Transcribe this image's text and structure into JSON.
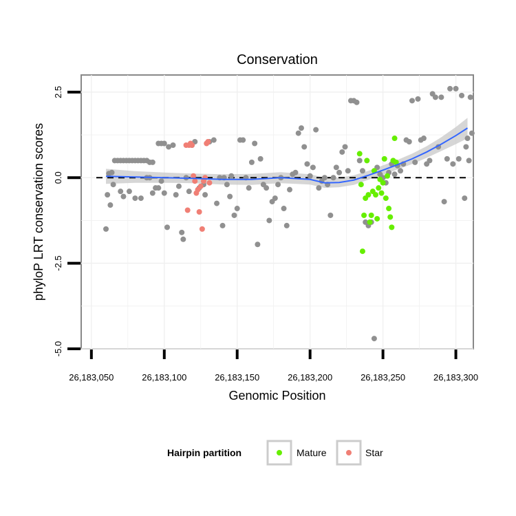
{
  "chart_data": {
    "type": "scatter",
    "title": "Conservation",
    "xlabel": "Genomic Position",
    "ylabel": "phyloP LRT conservation scores",
    "xlim": [
      26183043,
      26183312
    ],
    "ylim": [
      -5.0,
      3.0
    ],
    "x_ticks": [
      26183050,
      26183100,
      26183150,
      26183200,
      26183250,
      26183300
    ],
    "x_tick_labels": [
      "26,183,050",
      "26,183,100",
      "26,183,150",
      "26,183,200",
      "26,183,250",
      "26,183,300"
    ],
    "y_ticks": [
      -5.0,
      -2.5,
      0.0,
      2.5
    ],
    "y_tick_labels": [
      "-5.0",
      "-2.5",
      "0.0",
      "2.5"
    ],
    "reference_line": {
      "y": 0,
      "style": "dashed",
      "color": "#000000"
    },
    "legend": {
      "title": "Hairpin partition",
      "placement": "bottom",
      "entries": [
        {
          "label": "Mature",
          "color": "#66ee00"
        },
        {
          "label": "Star",
          "color": "#f07f75"
        }
      ]
    },
    "colors": {
      "other": "#909090",
      "mature": "#66ee00",
      "star": "#f07f75",
      "smooth": "#3366ff",
      "band": "#c8c8c8"
    },
    "smooth": {
      "x": [
        26183060,
        26183080,
        26183100,
        26183120,
        26183140,
        26183160,
        26183180,
        26183200,
        26183210,
        26183220,
        26183230,
        26183240,
        26183250,
        26183260,
        26183270,
        26183280,
        26183290,
        26183300,
        26183308
      ],
      "y": [
        0.04,
        0.02,
        0.0,
        -0.02,
        -0.05,
        -0.05,
        0.0,
        -0.05,
        -0.15,
        -0.14,
        -0.07,
        0.07,
        0.22,
        0.38,
        0.55,
        0.75,
        0.98,
        1.23,
        1.45
      ],
      "ci_half_width": [
        0.22,
        0.17,
        0.15,
        0.14,
        0.15,
        0.16,
        0.16,
        0.15,
        0.15,
        0.14,
        0.14,
        0.13,
        0.14,
        0.14,
        0.15,
        0.17,
        0.2,
        0.25,
        0.3
      ]
    },
    "series": [
      {
        "name": "Other",
        "points": [
          [
            26183060,
            -1.5
          ],
          [
            26183061,
            -0.5
          ],
          [
            26183062,
            0.12
          ],
          [
            26183063,
            -0.8
          ],
          [
            26183064,
            0.15
          ],
          [
            26183065,
            -0.2
          ],
          [
            26183066,
            0.5
          ],
          [
            26183068,
            0.5
          ],
          [
            26183070,
            0.5
          ],
          [
            26183072,
            0.5
          ],
          [
            26183074,
            0.5
          ],
          [
            26183076,
            0.5
          ],
          [
            26183078,
            0.5
          ],
          [
            26183080,
            0.5
          ],
          [
            26183082,
            0.5
          ],
          [
            26183084,
            0.5
          ],
          [
            26183086,
            0.5
          ],
          [
            26183088,
            0.5
          ],
          [
            26183090,
            0.45
          ],
          [
            26183092,
            0.45
          ],
          [
            26183070,
            -0.4
          ],
          [
            26183072,
            -0.55
          ],
          [
            26183076,
            -0.4
          ],
          [
            26183080,
            -0.6
          ],
          [
            26183084,
            -0.6
          ],
          [
            26183088,
            0.0
          ],
          [
            26183090,
            0.0
          ],
          [
            26183092,
            -0.45
          ],
          [
            26183094,
            -0.3
          ],
          [
            26183096,
            -0.3
          ],
          [
            26183098,
            -0.1
          ],
          [
            26183100,
            -0.45
          ],
          [
            26183102,
            -1.45
          ],
          [
            26183096,
            1.0
          ],
          [
            26183098,
            1.0
          ],
          [
            26183100,
            1.0
          ],
          [
            26183103,
            0.9
          ],
          [
            26183106,
            0.95
          ],
          [
            26183108,
            -0.5
          ],
          [
            26183110,
            -0.25
          ],
          [
            26183112,
            -1.6
          ],
          [
            26183113,
            -1.8
          ],
          [
            26183115,
            0.0
          ],
          [
            26183117,
            -0.4
          ],
          [
            26183119,
            0.95
          ],
          [
            26183121,
            1.05
          ],
          [
            26183124,
            -0.3
          ],
          [
            26183127,
            -0.2
          ],
          [
            26183128,
            -0.5
          ],
          [
            26183131,
            1.05
          ],
          [
            26183134,
            1.1
          ],
          [
            26183136,
            -0.75
          ],
          [
            26183138,
            0.0
          ],
          [
            26183140,
            -1.4
          ],
          [
            26183141,
            0.0
          ],
          [
            26183143,
            -0.2
          ],
          [
            26183145,
            -0.55
          ],
          [
            26183146,
            0.05
          ],
          [
            26183148,
            -1.1
          ],
          [
            26183150,
            -0.9
          ],
          [
            26183152,
            1.1
          ],
          [
            26183154,
            1.1
          ],
          [
            26183156,
            0.0
          ],
          [
            26183158,
            -0.3
          ],
          [
            26183160,
            0.45
          ],
          [
            26183162,
            1.0
          ],
          [
            26183164,
            -1.95
          ],
          [
            26183166,
            0.55
          ],
          [
            26183168,
            -0.2
          ],
          [
            26183170,
            -0.3
          ],
          [
            26183172,
            -1.25
          ],
          [
            26183174,
            -0.7
          ],
          [
            26183176,
            -0.6
          ],
          [
            26183178,
            -0.2
          ],
          [
            26183180,
            0.0
          ],
          [
            26183182,
            -0.9
          ],
          [
            26183184,
            -1.4
          ],
          [
            26183186,
            -0.35
          ],
          [
            26183188,
            0.1
          ],
          [
            26183190,
            0.15
          ],
          [
            26183192,
            1.3
          ],
          [
            26183194,
            1.45
          ],
          [
            26183196,
            0.9
          ],
          [
            26183198,
            0.4
          ],
          [
            26183200,
            0.05
          ],
          [
            26183202,
            0.3
          ],
          [
            26183204,
            1.4
          ],
          [
            26183206,
            -0.3
          ],
          [
            26183208,
            -0.1
          ],
          [
            26183210,
            0.0
          ],
          [
            26183212,
            -0.2
          ],
          [
            26183214,
            -1.1
          ],
          [
            26183216,
            0.0
          ],
          [
            26183218,
            0.3
          ],
          [
            26183220,
            0.15
          ],
          [
            26183222,
            0.75
          ],
          [
            26183224,
            0.9
          ],
          [
            26183226,
            0.2
          ],
          [
            26183228,
            2.25
          ],
          [
            26183230,
            2.25
          ],
          [
            26183232,
            2.2
          ],
          [
            26183234,
            0.5
          ],
          [
            26183236,
            0.2
          ],
          [
            26183238,
            -1.3
          ],
          [
            26183240,
            -1.4
          ],
          [
            26183242,
            -1.3
          ],
          [
            26183244,
            -4.7
          ],
          [
            26183246,
            0.3
          ],
          [
            26183248,
            0.1
          ],
          [
            26183250,
            0.0
          ],
          [
            26183252,
            -0.15
          ],
          [
            26183254,
            0.15
          ],
          [
            26183256,
            0.4
          ],
          [
            26183258,
            0.1
          ],
          [
            26183260,
            0.35
          ],
          [
            26183262,
            0.2
          ],
          [
            26183264,
            0.4
          ],
          [
            26183266,
            1.1
          ],
          [
            26183268,
            1.05
          ],
          [
            26183270,
            2.25
          ],
          [
            26183272,
            0.45
          ],
          [
            26183274,
            2.3
          ],
          [
            26183276,
            1.1
          ],
          [
            26183278,
            1.15
          ],
          [
            26183280,
            0.4
          ],
          [
            26183282,
            0.5
          ],
          [
            26183284,
            2.45
          ],
          [
            26183286,
            2.35
          ],
          [
            26183288,
            0.9
          ],
          [
            26183290,
            2.35
          ],
          [
            26183292,
            -0.7
          ],
          [
            26183294,
            0.55
          ],
          [
            26183296,
            2.6
          ],
          [
            26183298,
            0.4
          ],
          [
            26183300,
            2.6
          ],
          [
            26183302,
            0.55
          ],
          [
            26183304,
            2.4
          ],
          [
            26183306,
            -0.6
          ],
          [
            26183307,
            0.9
          ],
          [
            26183308,
            1.15
          ],
          [
            26183309,
            0.5
          ],
          [
            26183310,
            2.35
          ],
          [
            26183311,
            1.3
          ]
        ]
      },
      {
        "name": "Mature",
        "points": [
          [
            26183234,
            0.7
          ],
          [
            26183235,
            -0.2
          ],
          [
            26183236,
            -2.15
          ],
          [
            26183237,
            -1.1
          ],
          [
            26183238,
            -0.6
          ],
          [
            26183239,
            0.5
          ],
          [
            26183240,
            -0.5
          ],
          [
            26183241,
            -1.3
          ],
          [
            26183242,
            -1.1
          ],
          [
            26183243,
            -0.4
          ],
          [
            26183244,
            0.2
          ],
          [
            26183245,
            -0.5
          ],
          [
            26183246,
            -1.2
          ],
          [
            26183247,
            -0.3
          ],
          [
            26183248,
            -0.05
          ],
          [
            26183249,
            -0.45
          ],
          [
            26183250,
            -0.15
          ],
          [
            26183251,
            0.55
          ],
          [
            26183252,
            -0.6
          ],
          [
            26183253,
            0.05
          ],
          [
            26183254,
            -0.9
          ],
          [
            26183255,
            -1.15
          ],
          [
            26183256,
            -1.45
          ],
          [
            26183257,
            0.5
          ],
          [
            26183258,
            1.15
          ],
          [
            26183259,
            0.45
          ]
        ]
      },
      {
        "name": "Star",
        "points": [
          [
            26183115,
            0.95
          ],
          [
            26183116,
            -0.95
          ],
          [
            26183117,
            0.95
          ],
          [
            26183118,
            1.0
          ],
          [
            26183119,
            0.95
          ],
          [
            26183120,
            0.05
          ],
          [
            26183121,
            -0.1
          ],
          [
            26183122,
            -0.45
          ],
          [
            26183123,
            -0.35
          ],
          [
            26183124,
            -1.0
          ],
          [
            26183125,
            -0.25
          ],
          [
            26183126,
            -1.5
          ],
          [
            26183127,
            -0.1
          ],
          [
            26183128,
            0.0
          ],
          [
            26183129,
            1.0
          ],
          [
            26183130,
            1.05
          ],
          [
            26183131,
            -0.15
          ]
        ]
      }
    ]
  }
}
